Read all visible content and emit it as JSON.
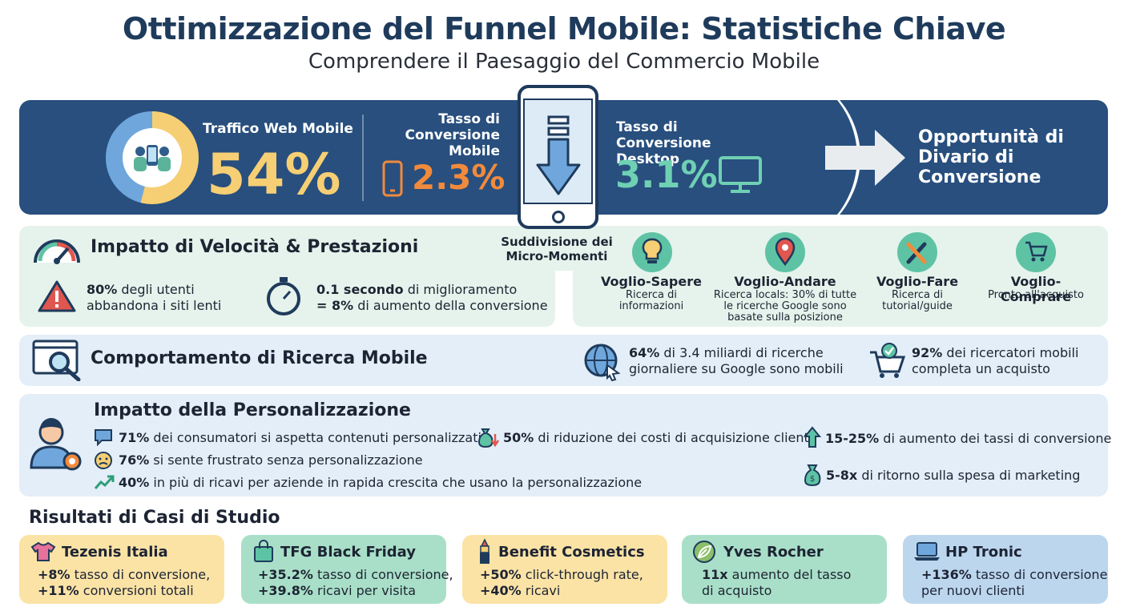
{
  "header": {
    "title": "Ottimizzazione del Funnel Mobile: Statistiche Chiave",
    "subtitle": "Comprendere il Paesaggio del Commercio Mobile"
  },
  "banner": {
    "mobile_traffic_label": "Traffico Web Mobile",
    "mobile_traffic_value": "54%",
    "mobile_conv_label": "Tasso di Conversione Mobile",
    "mobile_conv_value": "2.3%",
    "desktop_conv_label": "Tasso di Conversione Desktop",
    "desktop_conv_value": "3.1%",
    "opportunity": "Opportunità di Divario di Conversione",
    "mobile_traffic_share": 0.54
  },
  "speed": {
    "title": "Impatto di Velocità & Prestazioni",
    "stat1_bold": "80%",
    "stat1_text": " degli utenti abbandona i siti lenti",
    "stat2_bold1": "0.1 secondo",
    "stat2_text1": " di miglioramento",
    "stat2_bold2": "= 8%",
    "stat2_text2": " di aumento della conversione"
  },
  "micro_moments": {
    "title": "Suddivisione dei Micro-Momenti",
    "items": [
      {
        "name": "Voglio-Sapere",
        "desc": "Ricerca di informazioni"
      },
      {
        "name": "Voglio-Andare",
        "desc": "Ricerca locals: 30% di tutte le ricerche Google sono basate sulla posizione"
      },
      {
        "name": "Voglio-Fare",
        "desc": "Ricerca di tutorial/guide"
      },
      {
        "name": "Voglio-Comprare",
        "desc": "Pronto all'acquisto"
      }
    ]
  },
  "search": {
    "title": "Comportamento di Ricerca Mobile",
    "stat1_bold": "64%",
    "stat1_text": " di 3.4 miliardi di ricerche giornaliere su Google sono mobili",
    "stat2_bold": "92%",
    "stat2_text": " dei ricercatori mobili completa un acquisto"
  },
  "personalization": {
    "title": "Impatto della Personalizzazione",
    "s1_bold": "71%",
    "s1_text": " dei consumatori si aspetta contenuti personalizzati",
    "s2_bold": "76%",
    "s2_text": " si sente frustrato senza personalizzazione",
    "s3_bold": "40%",
    "s3_text": " in più di ricavi per aziende in rapida crescita che usano la personalizzazione",
    "s4_bold": "50%",
    "s4_text": " di riduzione dei costi di acquisizione clienti",
    "s5_bold": "15-25%",
    "s5_text": " di aumento dei tassi di conversione",
    "s6_bold": "5-8x",
    "s6_text": " di ritorno sulla spesa di marketing"
  },
  "cases": {
    "title": "Risultati di Casi di Studio",
    "items": [
      {
        "name": "Tezenis Italia",
        "b1": "+8%",
        "t1": " tasso di conversione,",
        "b2": "+11%",
        "t2": " conversioni totali",
        "color": "#fbe3a6"
      },
      {
        "name": "TFG Black Friday",
        "b1": "+35.2%",
        "t1": " tasso di conversione,",
        "b2": "+39.8%",
        "t2": " ricavi per visita",
        "color": "#a9dfc8"
      },
      {
        "name": "Benefit Cosmetics",
        "b1": "+50%",
        "t1": " click-through rate,",
        "b2": "+40%",
        "t2": " ricavi",
        "color": "#fbe3a6"
      },
      {
        "name": "Yves Rocher",
        "b1": "11x",
        "t1": " aumento del tasso",
        "b2": "",
        "t2": "di acquisto",
        "color": "#a9dfc8"
      },
      {
        "name": "HP Tronic",
        "b1": "+136%",
        "t1": " tasso di conversione",
        "b2": "",
        "t2": "per nuovi clienti",
        "color": "#bcd6ee"
      }
    ]
  },
  "colors": {
    "banner": "#284f7e",
    "yellow": "#f6cf74",
    "orange": "#f28a3c",
    "teal": "#6fd0b4",
    "green_panel": "#e5f3ec",
    "blue_panel": "#e3eef8"
  }
}
